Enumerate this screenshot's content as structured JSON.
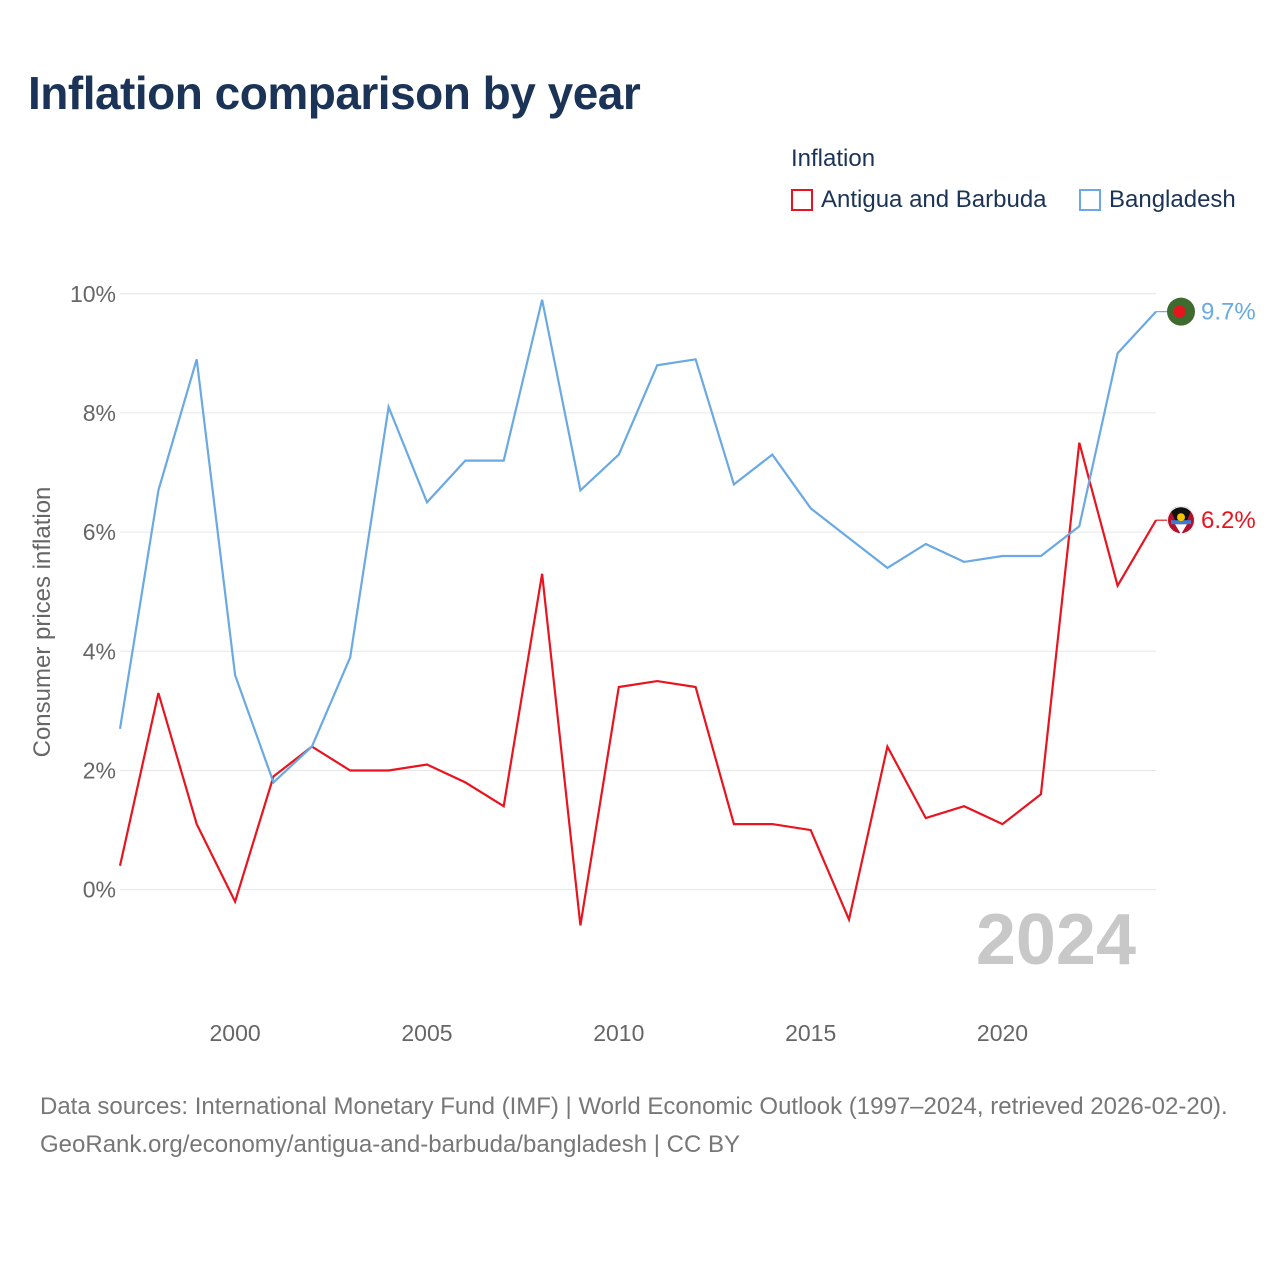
{
  "title": "Inflation comparison by year",
  "legend_title": "Inflation",
  "chart_data": {
    "type": "line",
    "title": "Inflation comparison by year",
    "ylabel": "Consumer prices inflation",
    "xlabel": "",
    "x": [
      1997,
      1998,
      1999,
      2000,
      2001,
      2002,
      2003,
      2004,
      2005,
      2006,
      2007,
      2008,
      2009,
      2010,
      2011,
      2012,
      2013,
      2014,
      2015,
      2016,
      2017,
      2018,
      2019,
      2020,
      2021,
      2022,
      2023,
      2024
    ],
    "xlim": [
      1997,
      2024
    ],
    "ylim": [
      -1.6,
      10.6
    ],
    "yticks": [
      0,
      2,
      4,
      6,
      8,
      10
    ],
    "ytick_labels": [
      "0%",
      "2%",
      "4%",
      "6%",
      "8%",
      "10%"
    ],
    "xticks": [
      2000,
      2005,
      2010,
      2015,
      2020
    ],
    "xtick_labels": [
      "2000",
      "2005",
      "2010",
      "2015",
      "2020"
    ],
    "grid": true,
    "legend_position": "top-right",
    "watermark": "2024",
    "series": [
      {
        "name": "Antigua and Barbuda",
        "color": "#e8141f",
        "end_label": "6.2%",
        "flag_icon": "antigua-and-barbuda-flag-icon",
        "values": [
          0.4,
          3.3,
          1.1,
          -0.2,
          1.9,
          2.4,
          2.0,
          2.0,
          2.1,
          1.8,
          1.4,
          5.3,
          -0.6,
          3.4,
          3.5,
          3.4,
          1.1,
          1.1,
          1.0,
          -0.5,
          2.4,
          1.2,
          1.4,
          1.1,
          1.6,
          7.5,
          5.1,
          6.2
        ]
      },
      {
        "name": "Bangladesh",
        "color": "#6aa9e3",
        "end_label": "9.7%",
        "flag_icon": "bangladesh-flag-icon",
        "values": [
          2.7,
          6.7,
          8.9,
          3.6,
          1.8,
          2.4,
          3.9,
          8.1,
          6.5,
          7.2,
          7.2,
          9.9,
          6.7,
          7.3,
          8.8,
          8.9,
          6.8,
          7.3,
          6.4,
          5.9,
          5.4,
          5.8,
          5.5,
          5.6,
          5.6,
          6.1,
          9.0,
          9.7
        ]
      }
    ]
  },
  "footer": {
    "sources": "Data sources: International Monetary Fund (IMF) | World Economic Outlook (1997–2024, retrieved 2026-02-20).",
    "credit": "GeoRank.org/economy/antigua-and-barbuda/bangladesh | CC BY"
  }
}
